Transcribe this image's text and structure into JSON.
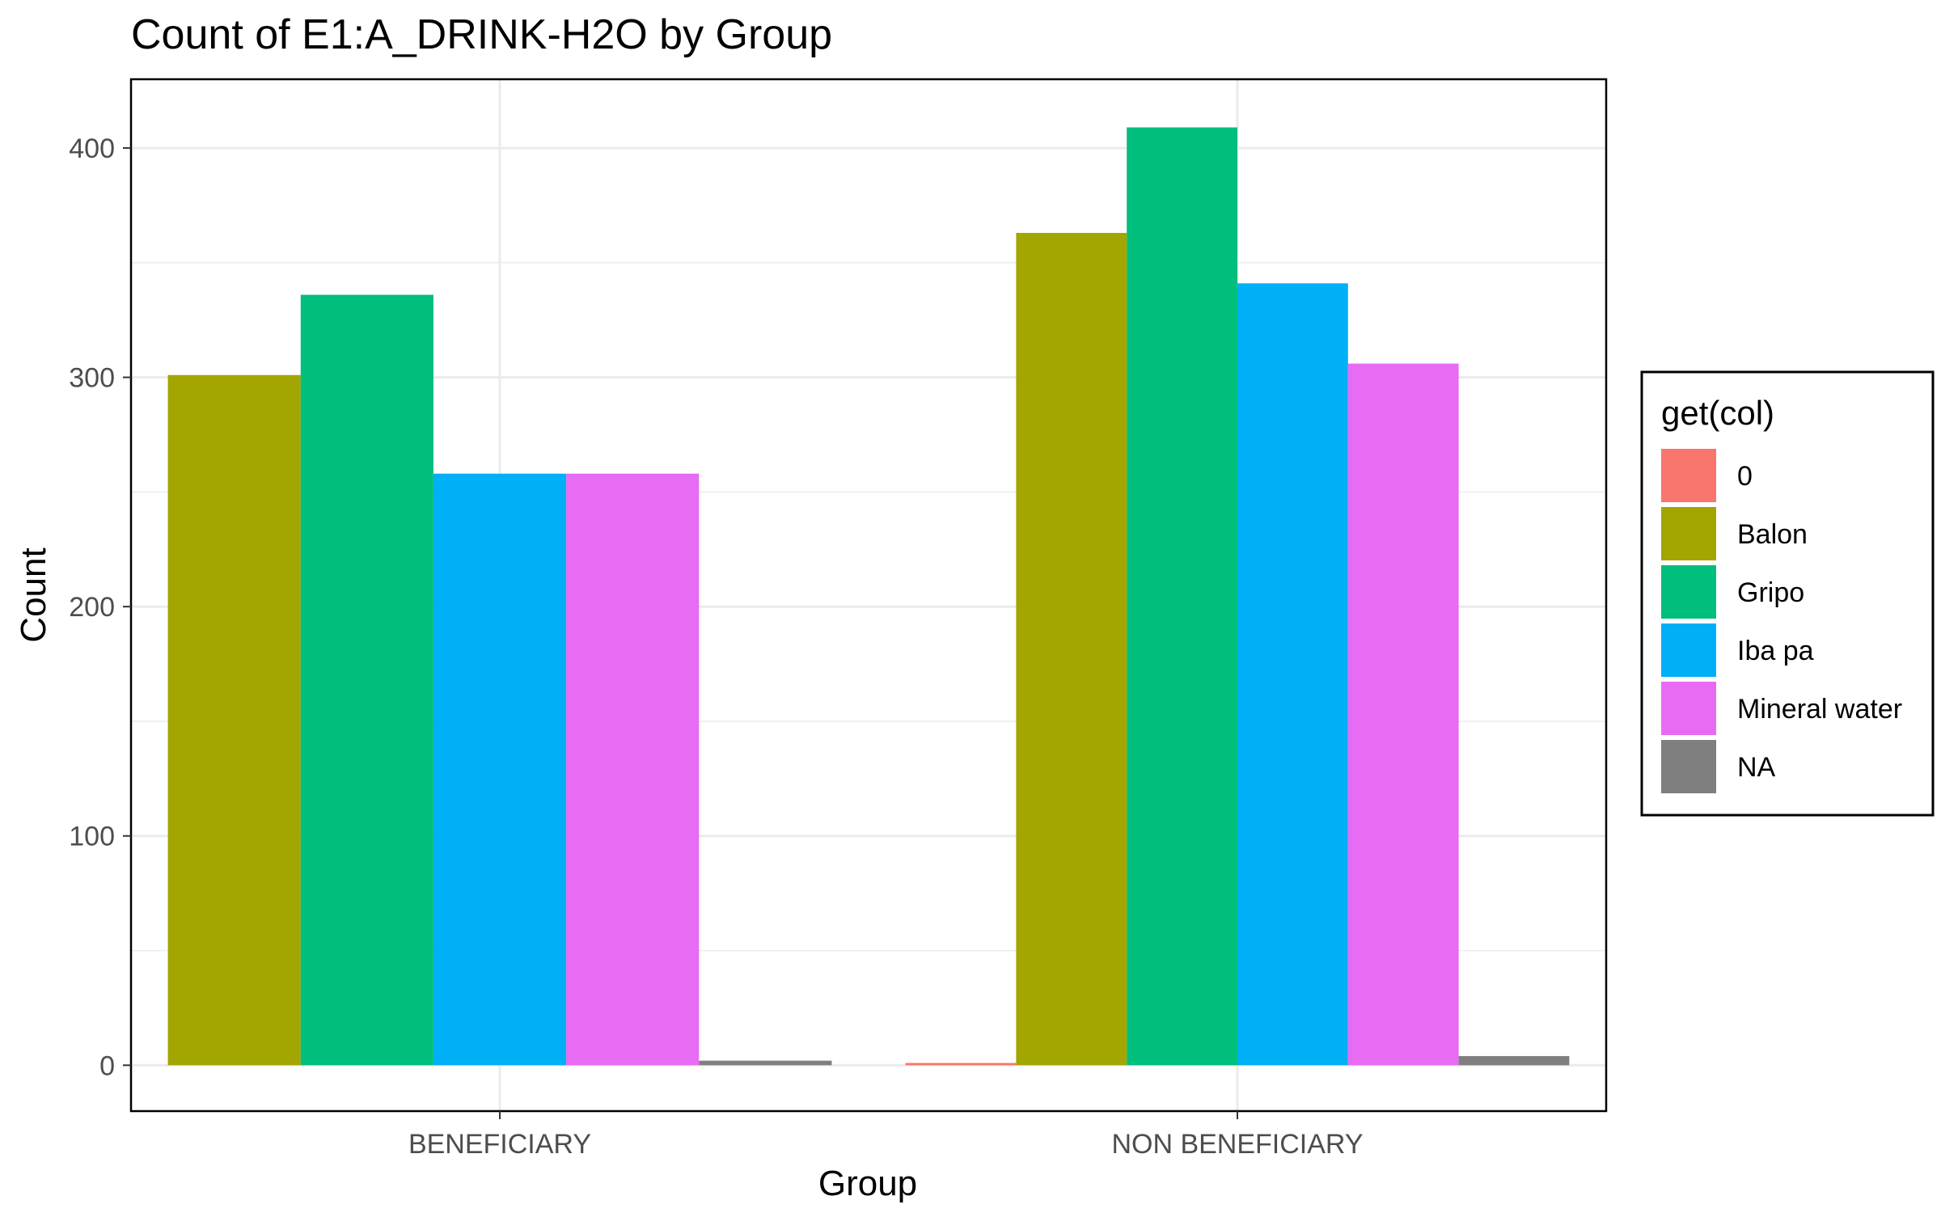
{
  "chart_data": {
    "type": "bar",
    "title": "Count of E1:A_DRINK-H2O by Group",
    "xlabel": "Group",
    "ylabel": "Count",
    "categories": [
      "BENEFICIARY",
      "NON BENEFICIARY"
    ],
    "ylim": [
      -20,
      430
    ],
    "yticks": [
      0,
      100,
      200,
      300,
      400
    ],
    "grid": true,
    "legend_title": "get(col)",
    "legend_position": "right",
    "series": [
      {
        "name": "0",
        "color": "#F8766D",
        "values": [
          null,
          1
        ]
      },
      {
        "name": "Balon",
        "color": "#A3A500",
        "values": [
          301,
          363
        ]
      },
      {
        "name": "Gripo",
        "color": "#00BF7D",
        "values": [
          336,
          409
        ]
      },
      {
        "name": "Iba pa",
        "color": "#00B0F6",
        "values": [
          258,
          341
        ]
      },
      {
        "name": "Mineral water",
        "color": "#E76BF3",
        "values": [
          258,
          306
        ]
      },
      {
        "name": "NA",
        "color": "#7F7F7F",
        "values": [
          2,
          4
        ]
      }
    ]
  }
}
